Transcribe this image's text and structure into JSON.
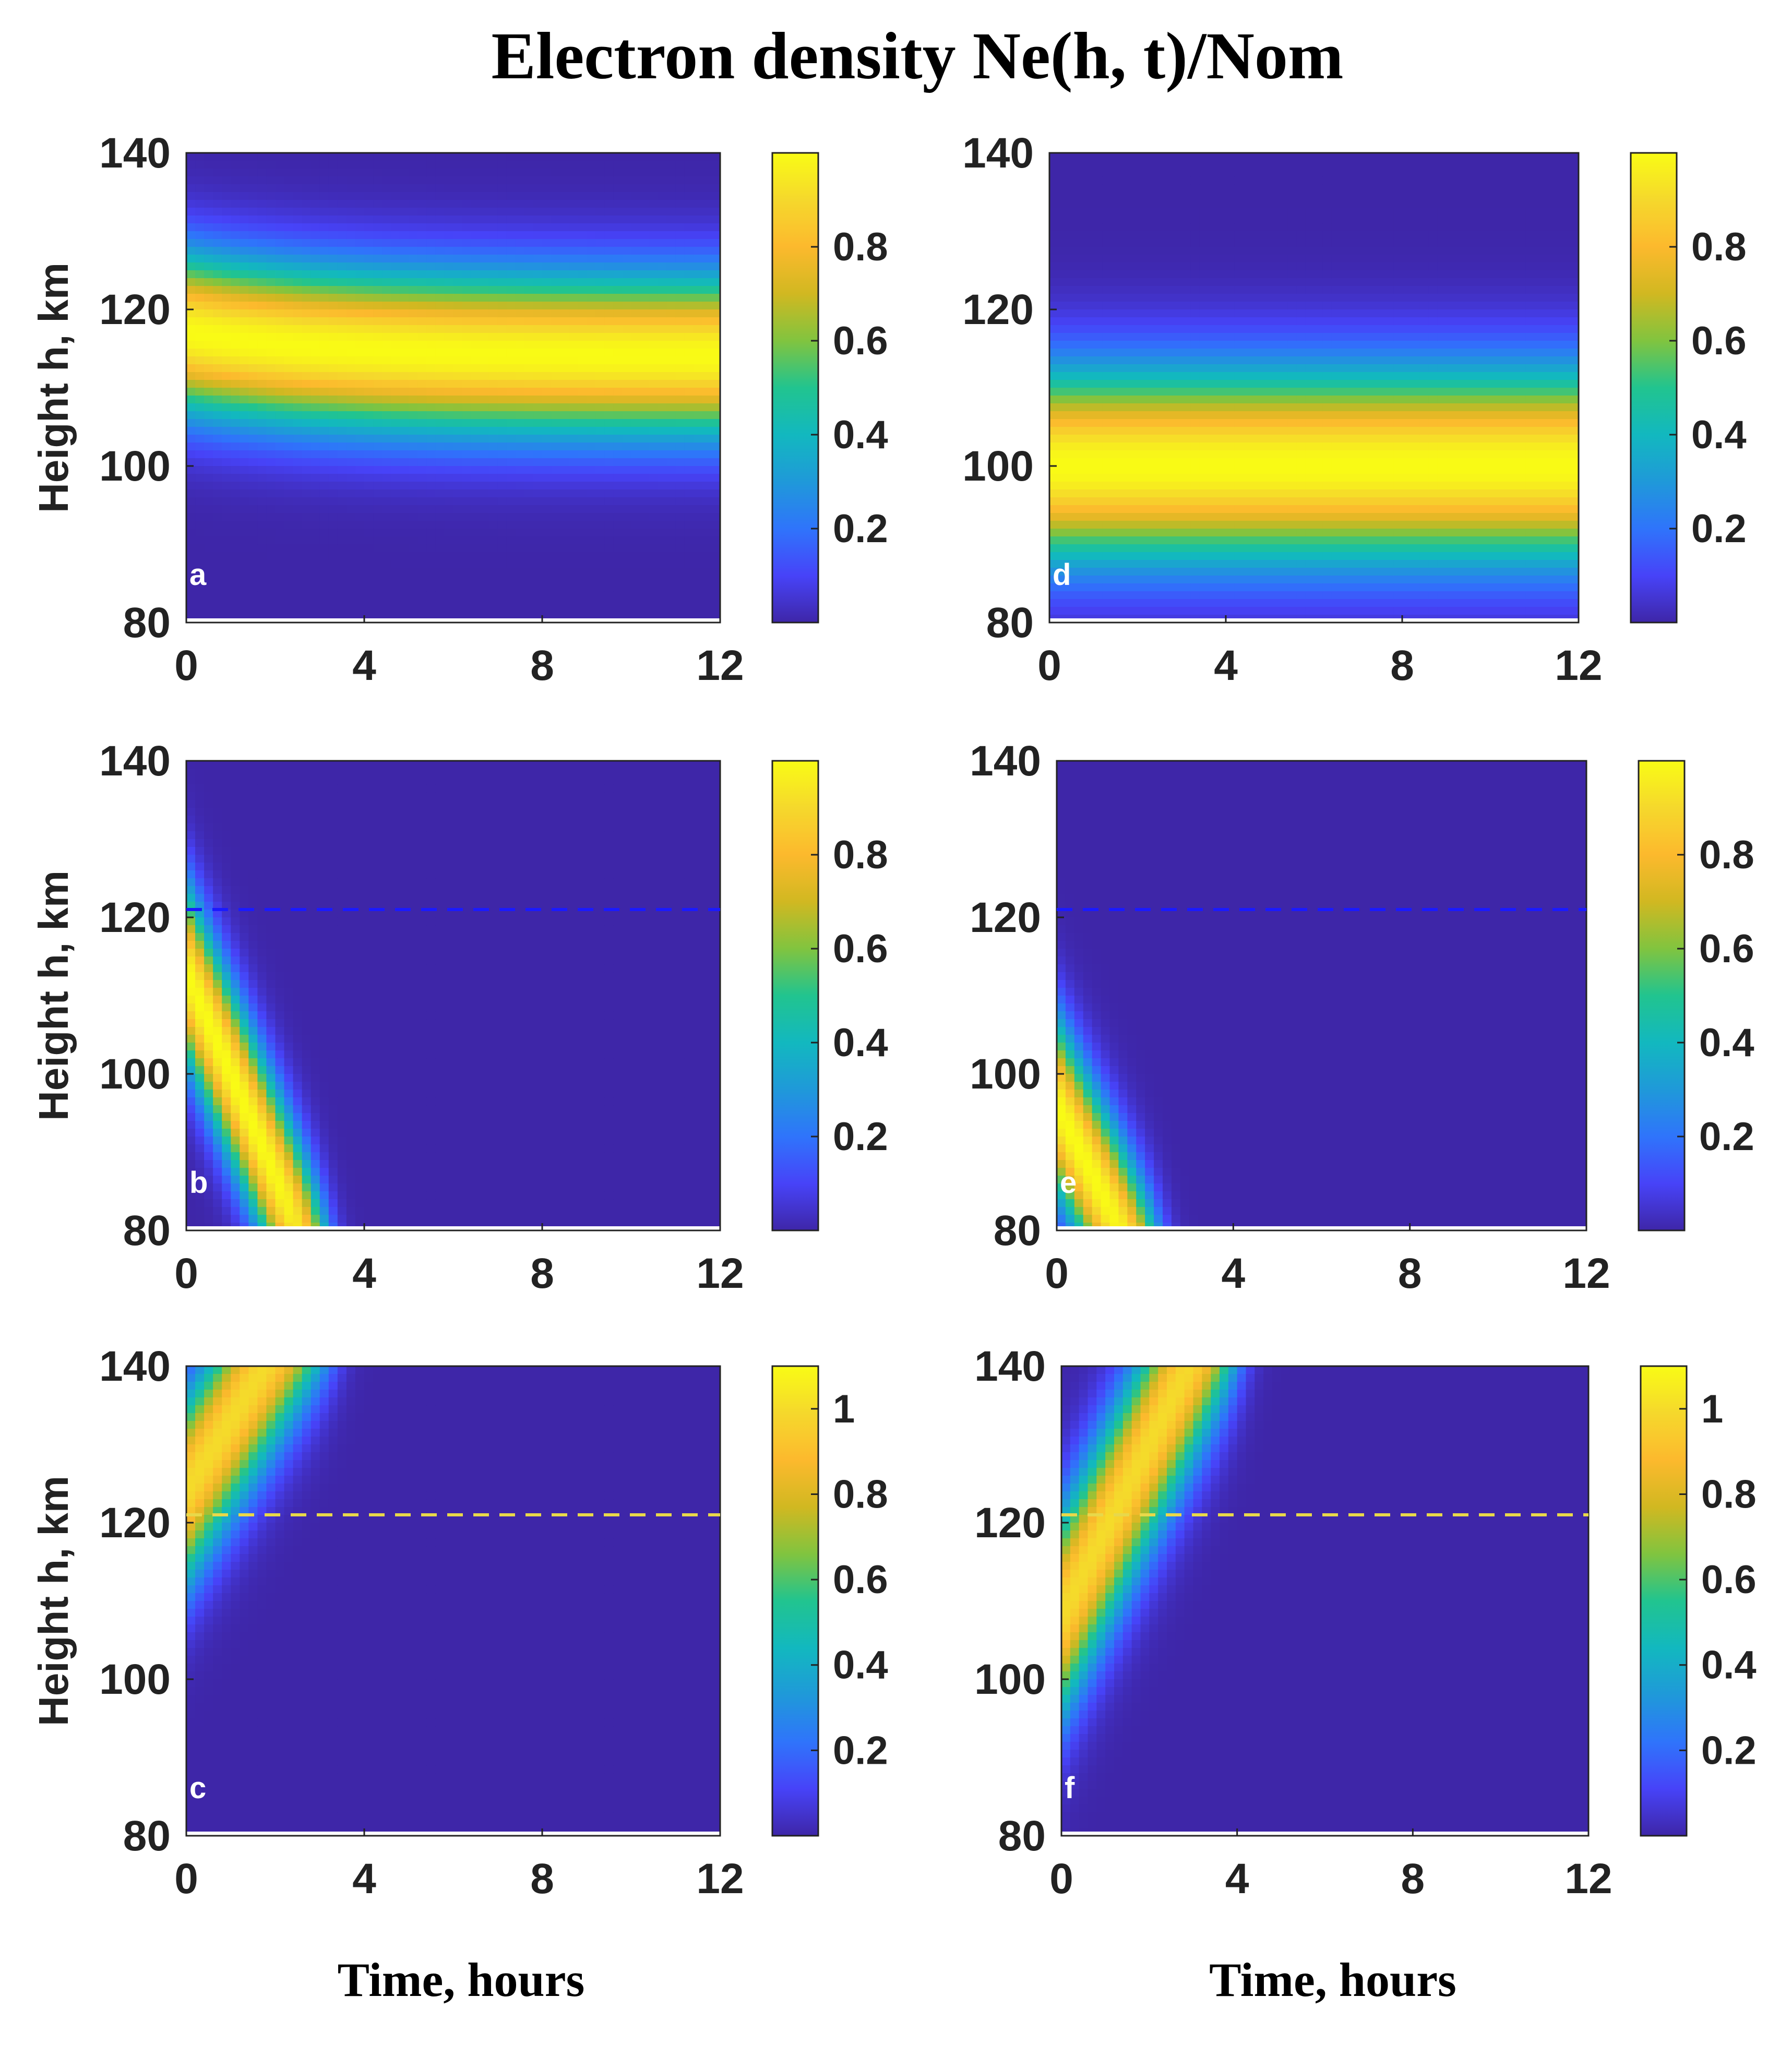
{
  "figure_title": "Electron density Ne(h, t)/Nom",
  "colormap": [
    "#3e26a8",
    "#4743f8",
    "#2f74fb",
    "#1f99d9",
    "#12b8bf",
    "#21c48f",
    "#81c43f",
    "#d1b821",
    "#fcb92d",
    "#f5d82c",
    "#f9fb15"
  ],
  "chart_data": [
    {
      "panel_label": "a",
      "type": "heatmap",
      "model": "static_layer",
      "xlabel": "",
      "ylabel": "Height h, km",
      "xlim": [
        0,
        12
      ],
      "ylim": [
        80,
        140
      ],
      "xticks": [
        "0",
        "4",
        "8",
        "12"
      ],
      "yticks": [
        "80",
        "100",
        "120",
        "140"
      ],
      "colorbar": {
        "range": [
          0,
          1
        ],
        "ticks": [
          "0.2",
          "0.4",
          "0.6",
          "0.8"
        ]
      },
      "layer": {
        "peak_height_start_km": 117,
        "peak_height_end_km": 114,
        "half_width_km": 10,
        "peak_value": 1.0
      },
      "reference_line": null
    },
    {
      "panel_label": "d",
      "type": "heatmap",
      "model": "static_layer",
      "xlabel": "",
      "ylabel": "",
      "xlim": [
        0,
        12
      ],
      "ylim": [
        80,
        140
      ],
      "xticks": [
        "0",
        "4",
        "8",
        "12"
      ],
      "yticks": [
        "80",
        "100",
        "120",
        "140"
      ],
      "colorbar": {
        "range": [
          0,
          1
        ],
        "ticks": [
          "0.2",
          "0.4",
          "0.6",
          "0.8"
        ]
      },
      "layer": {
        "peak_height_start_km": 100,
        "peak_height_end_km": 100,
        "half_width_km": 12,
        "peak_value": 1.0
      },
      "reference_line": null
    },
    {
      "panel_label": "b",
      "type": "heatmap",
      "model": "moving_layer",
      "xlabel": "",
      "ylabel": "Height h, km",
      "xlim": [
        0,
        12
      ],
      "ylim": [
        80,
        140
      ],
      "xticks": [
        "0",
        "4",
        "8",
        "12"
      ],
      "yticks": [
        "80",
        "100",
        "120",
        "140"
      ],
      "colorbar": {
        "range": [
          0,
          1
        ],
        "ticks": [
          "0.2",
          "0.4",
          "0.6",
          "0.8"
        ]
      },
      "layer": {
        "start_height_km": 113,
        "velocity_km_per_hour": -13,
        "thickness_km": 11,
        "end_time_hours": 3.2,
        "peak_value": 1.0
      },
      "reference_line": {
        "height_km": 121,
        "color": "#1a1aff"
      }
    },
    {
      "panel_label": "e",
      "type": "heatmap",
      "model": "moving_layer",
      "xlabel": "",
      "ylabel": "",
      "xlim": [
        0,
        12
      ],
      "ylim": [
        80,
        140
      ],
      "xticks": [
        "0",
        "4",
        "8",
        "12"
      ],
      "yticks": [
        "80",
        "100",
        "120",
        "140"
      ],
      "colorbar": {
        "range": [
          0,
          1
        ],
        "ticks": [
          "0.2",
          "0.4",
          "0.6",
          "0.8"
        ]
      },
      "layer": {
        "start_height_km": 96,
        "velocity_km_per_hour": -11,
        "thickness_km": 11,
        "end_time_hours": 2.4,
        "peak_value": 1.0
      },
      "reference_line": {
        "height_km": 121,
        "color": "#1a1aff"
      }
    },
    {
      "panel_label": "c",
      "type": "heatmap",
      "model": "moving_layer",
      "xlabel": "Time, hours",
      "ylabel": "Height h, km",
      "xlim": [
        0,
        12
      ],
      "ylim": [
        80,
        140
      ],
      "xticks": [
        "0",
        "4",
        "8",
        "12"
      ],
      "yticks": [
        "80",
        "100",
        "120",
        "140"
      ],
      "colorbar": {
        "range": [
          0,
          1.1
        ],
        "ticks": [
          "0.2",
          "0.4",
          "0.6",
          "0.8",
          "1"
        ]
      },
      "layer": {
        "start_height_km": 124,
        "velocity_km_per_hour": 9,
        "thickness_km": 12,
        "end_time_hours": 3.5,
        "peak_value": 1.0
      },
      "reference_line": {
        "height_km": 121,
        "color": "#e8d84a"
      }
    },
    {
      "panel_label": "f",
      "type": "heatmap",
      "model": "moving_layer",
      "xlabel": "Time, hours",
      "ylabel": "",
      "xlim": [
        0,
        12
      ],
      "ylim": [
        80,
        140
      ],
      "xticks": [
        "0",
        "4",
        "8",
        "12"
      ],
      "yticks": [
        "80",
        "100",
        "120",
        "140"
      ],
      "colorbar": {
        "range": [
          0,
          1.1
        ],
        "ticks": [
          "0.2",
          "0.4",
          "0.6",
          "0.8",
          "1"
        ]
      },
      "layer": {
        "start_height_km": 108,
        "velocity_km_per_hour": 11,
        "thickness_km": 13,
        "end_time_hours": 4.2,
        "peak_value": 1.0
      },
      "reference_line": {
        "height_km": 121,
        "color": "#e8d84a"
      }
    }
  ]
}
